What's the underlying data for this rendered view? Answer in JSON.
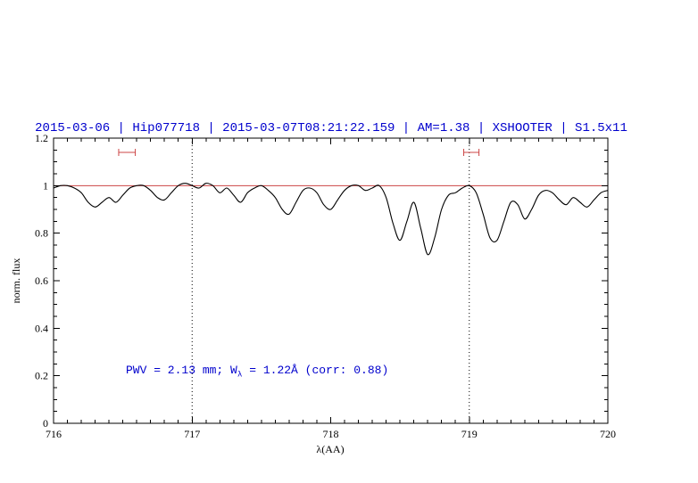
{
  "title": "2015-03-06 | Hip077718 | 2015-03-07T08:21:22.159 | AM=1.38 | XSHOOTER | S1.5x11",
  "colors": {
    "accent_blue": "#0000cd",
    "reference_red": "#cc4444",
    "spectrum_black": "#000000",
    "axis_black": "#000000",
    "background": "#ffffff"
  },
  "annotation_parts": {
    "prefix": "PWV = 2.13 mm; W",
    "sub": "λ",
    "suffix": " = 1.22Å (corr: 0.88)"
  },
  "chart_data": {
    "type": "line",
    "title": "2015-03-06 | Hip077718 | 2015-03-07T08:21:22.159 | AM=1.38 | XSHOOTER | S1.5x11",
    "xlabel": "λ(AA)",
    "ylabel": "norm. flux",
    "xlim": [
      716,
      720
    ],
    "ylim": [
      0,
      1.2
    ],
    "x_ticks": [
      716,
      717,
      718,
      719,
      720
    ],
    "x_tick_labels": [
      "716",
      "717",
      "718",
      "719",
      "720"
    ],
    "y_ticks": [
      0,
      0.2,
      0.4,
      0.6,
      0.8,
      1,
      1.2
    ],
    "y_tick_labels": [
      "0",
      "0.2",
      "0.4",
      "0.6",
      "0.8",
      "1",
      "1.2"
    ],
    "x_minor_step": 0.1,
    "y_minor_step": 0.05,
    "grid": false,
    "legend": "none",
    "reference_line_y": 1.0,
    "dotted_vlines": [
      717,
      719
    ],
    "interval_markers": [
      {
        "x_start": 716.47,
        "x_end": 716.59,
        "y": 1.14
      },
      {
        "x_start": 718.96,
        "x_end": 719.07,
        "y": 1.14
      }
    ],
    "annotation": {
      "x": 716.52,
      "y": 0.22,
      "text": "PWV = 2.13 mm; Wλ = 1.22Å (corr: 0.88)"
    },
    "series": [
      {
        "name": "normalized-spectrum",
        "x_start": 716.0,
        "x_step": 0.05,
        "flux": [
          0.99,
          1.0,
          1.0,
          0.99,
          0.97,
          0.93,
          0.91,
          0.93,
          0.95,
          0.93,
          0.96,
          0.99,
          1.0,
          1.0,
          0.98,
          0.95,
          0.94,
          0.97,
          1.0,
          1.01,
          1.0,
          0.99,
          1.01,
          1.0,
          0.97,
          0.99,
          0.96,
          0.93,
          0.97,
          0.99,
          1.0,
          0.98,
          0.95,
          0.9,
          0.88,
          0.93,
          0.98,
          0.99,
          0.97,
          0.92,
          0.9,
          0.94,
          0.98,
          1.0,
          1.0,
          0.98,
          0.99,
          1.0,
          0.95,
          0.84,
          0.77,
          0.85,
          0.93,
          0.82,
          0.71,
          0.78,
          0.9,
          0.96,
          0.97,
          0.99,
          1.0,
          0.97,
          0.88,
          0.78,
          0.77,
          0.85,
          0.93,
          0.92,
          0.86,
          0.9,
          0.96,
          0.98,
          0.97,
          0.94,
          0.92,
          0.95,
          0.93,
          0.91,
          0.94,
          0.97,
          0.98
        ]
      }
    ]
  }
}
